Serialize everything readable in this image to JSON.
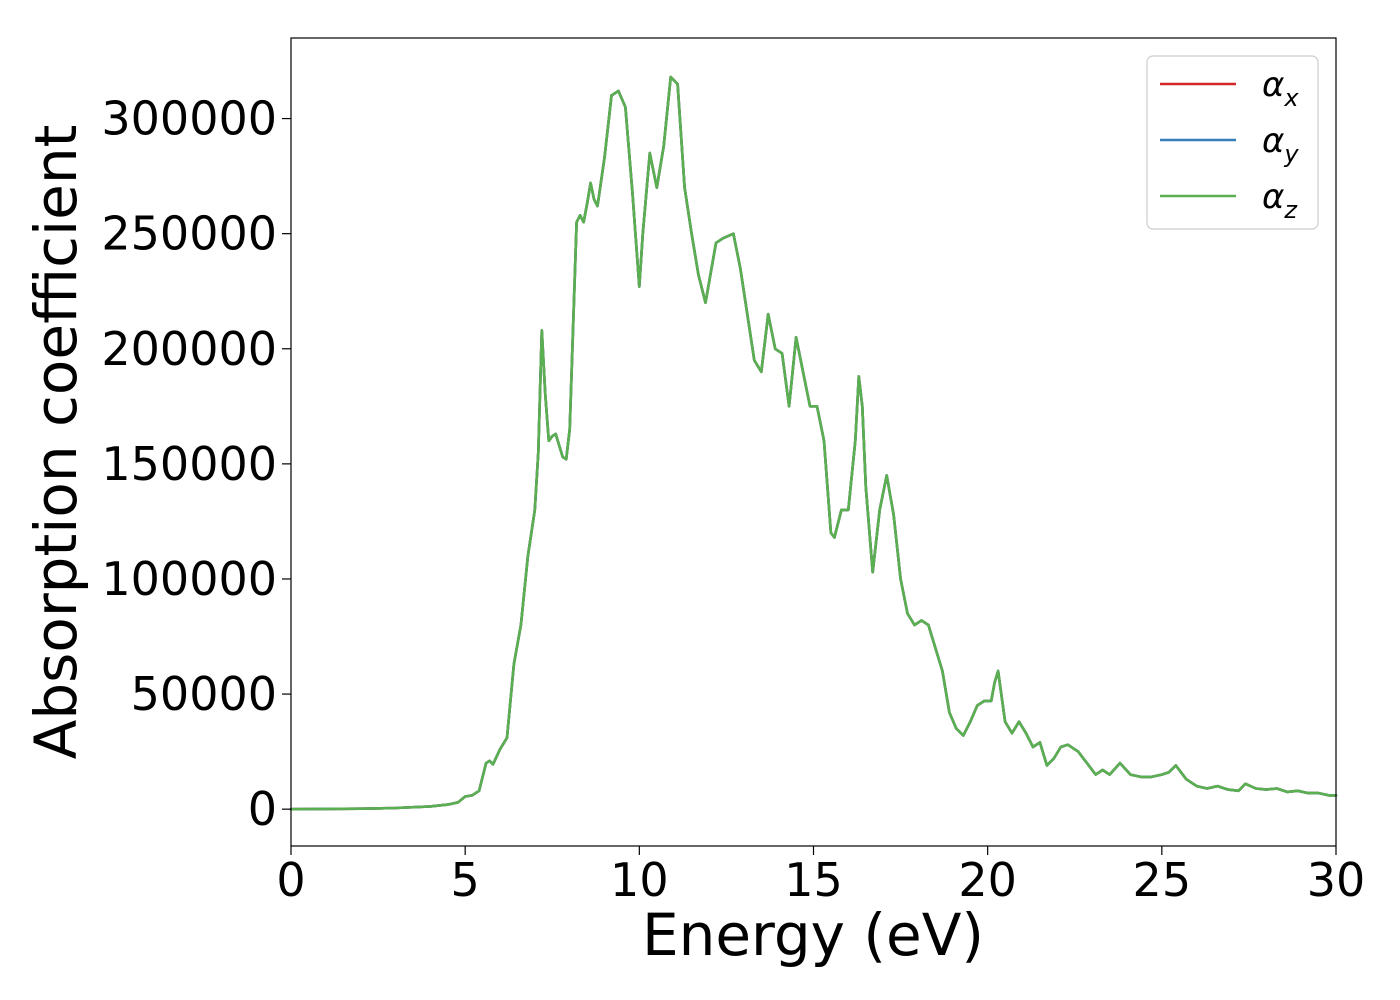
{
  "chart_data": {
    "type": "line",
    "title": "",
    "xlabel": "Energy (eV)",
    "ylabel": "Absorption coefficient",
    "xlim": [
      0,
      30
    ],
    "ylim": [
      -16000,
      335000
    ],
    "xticks": [
      0,
      5,
      10,
      15,
      20,
      25,
      30
    ],
    "xtick_labels": [
      "0",
      "5",
      "10",
      "15",
      "20",
      "25",
      "30"
    ],
    "yticks": [
      0,
      50000,
      100000,
      150000,
      200000,
      250000,
      300000
    ],
    "ytick_labels": [
      "0",
      "50000",
      "100000",
      "150000",
      "200000",
      "250000",
      "300000"
    ],
    "grid": false,
    "legend_position": "top-right",
    "x": [
      0,
      2,
      3,
      4,
      4.5,
      4.8,
      5.0,
      5.2,
      5.4,
      5.6,
      5.7,
      5.8,
      6.0,
      6.2,
      6.4,
      6.6,
      6.8,
      7.0,
      7.1,
      7.2,
      7.3,
      7.4,
      7.5,
      7.6,
      7.7,
      7.8,
      7.9,
      8.0,
      8.2,
      8.3,
      8.4,
      8.5,
      8.6,
      8.7,
      8.8,
      9.0,
      9.2,
      9.4,
      9.6,
      9.8,
      10.0,
      10.1,
      10.3,
      10.5,
      10.7,
      10.9,
      11.1,
      11.3,
      11.5,
      11.7,
      11.9,
      12.2,
      12.4,
      12.7,
      12.9,
      13.1,
      13.3,
      13.5,
      13.7,
      13.9,
      14.1,
      14.3,
      14.5,
      14.7,
      14.9,
      15.1,
      15.3,
      15.5,
      15.6,
      15.8,
      16.0,
      16.2,
      16.3,
      16.4,
      16.5,
      16.7,
      16.9,
      17.1,
      17.3,
      17.5,
      17.7,
      17.9,
      18.1,
      18.3,
      18.5,
      18.7,
      18.9,
      19.1,
      19.3,
      19.5,
      19.7,
      19.9,
      20.1,
      20.2,
      20.3,
      20.5,
      20.7,
      20.9,
      21.1,
      21.3,
      21.5,
      21.7,
      21.9,
      22.1,
      22.3,
      22.6,
      22.9,
      23.1,
      23.3,
      23.5,
      23.8,
      24.1,
      24.4,
      24.7,
      25.0,
      25.2,
      25.4,
      25.7,
      26.0,
      26.3,
      26.6,
      26.9,
      27.2,
      27.4,
      27.7,
      28.0,
      28.3,
      28.6,
      28.9,
      29.2,
      29.5,
      29.8,
      30.0
    ],
    "series": [
      {
        "name": "α_x",
        "color": "#d62728",
        "values": [
          0,
          200,
          500,
          1200,
          2000,
          3000,
          5500,
          6000,
          8000,
          20000,
          21000,
          19500,
          26000,
          31000,
          63000,
          80000,
          110000,
          130000,
          155000,
          208000,
          180000,
          160000,
          162000,
          163000,
          158000,
          153000,
          152000,
          165000,
          255000,
          258000,
          255000,
          263000,
          272000,
          265000,
          262000,
          283000,
          310000,
          312000,
          305000,
          268000,
          227000,
          250000,
          285000,
          270000,
          288000,
          318000,
          315000,
          270000,
          250000,
          232000,
          220000,
          246000,
          248000,
          250000,
          235000,
          215000,
          195000,
          190000,
          215000,
          200000,
          198000,
          175000,
          205000,
          190000,
          175000,
          175000,
          160000,
          120000,
          118000,
          130000,
          130000,
          160000,
          188000,
          175000,
          140000,
          103000,
          130000,
          145000,
          128000,
          100000,
          85000,
          80000,
          82000,
          80000,
          70000,
          60000,
          42000,
          35000,
          32000,
          38000,
          45000,
          47000,
          47000,
          55000,
          60000,
          38000,
          33000,
          38000,
          33000,
          27000,
          29000,
          19000,
          22000,
          27000,
          28000,
          25000,
          19000,
          15000,
          17000,
          15000,
          20000,
          15000,
          14000,
          14000,
          15000,
          16000,
          19000,
          13000,
          10000,
          9000,
          10000,
          8500,
          8000,
          11000,
          9000,
          8500,
          9000,
          7500,
          8000,
          7000,
          7000,
          6000,
          6000
        ]
      },
      {
        "name": "α_y",
        "color": "#377eb8",
        "values": [
          0,
          200,
          500,
          1200,
          2000,
          3000,
          5500,
          6000,
          8000,
          20000,
          21000,
          19500,
          26000,
          31000,
          63000,
          80000,
          110000,
          130000,
          155000,
          208000,
          180000,
          160000,
          162000,
          163000,
          158000,
          153000,
          152000,
          165000,
          255000,
          258000,
          255000,
          263000,
          272000,
          265000,
          262000,
          283000,
          310000,
          312000,
          305000,
          268000,
          227000,
          250000,
          285000,
          270000,
          288000,
          318000,
          315000,
          270000,
          250000,
          232000,
          220000,
          246000,
          248000,
          250000,
          235000,
          215000,
          195000,
          190000,
          215000,
          200000,
          198000,
          175000,
          205000,
          190000,
          175000,
          175000,
          160000,
          120000,
          118000,
          130000,
          130000,
          160000,
          188000,
          175000,
          140000,
          103000,
          130000,
          145000,
          128000,
          100000,
          85000,
          80000,
          82000,
          80000,
          70000,
          60000,
          42000,
          35000,
          32000,
          38000,
          45000,
          47000,
          47000,
          55000,
          60000,
          38000,
          33000,
          38000,
          33000,
          27000,
          29000,
          19000,
          22000,
          27000,
          28000,
          25000,
          19000,
          15000,
          17000,
          15000,
          20000,
          15000,
          14000,
          14000,
          15000,
          16000,
          19000,
          13000,
          10000,
          9000,
          10000,
          8500,
          8000,
          11000,
          9000,
          8500,
          9000,
          7500,
          8000,
          7000,
          7000,
          6000,
          6000
        ]
      },
      {
        "name": "α_z",
        "color": "#5aaf50",
        "values": [
          0,
          200,
          500,
          1200,
          2000,
          3000,
          5500,
          6000,
          8000,
          20000,
          21000,
          19500,
          26000,
          31000,
          63000,
          80000,
          110000,
          130000,
          155000,
          208000,
          180000,
          160000,
          162000,
          163000,
          158000,
          153000,
          152000,
          165000,
          255000,
          258000,
          255000,
          263000,
          272000,
          265000,
          262000,
          283000,
          310000,
          312000,
          305000,
          268000,
          227000,
          250000,
          285000,
          270000,
          288000,
          318000,
          315000,
          270000,
          250000,
          232000,
          220000,
          246000,
          248000,
          250000,
          235000,
          215000,
          195000,
          190000,
          215000,
          200000,
          198000,
          175000,
          205000,
          190000,
          175000,
          175000,
          160000,
          120000,
          118000,
          130000,
          130000,
          160000,
          188000,
          175000,
          140000,
          103000,
          130000,
          145000,
          128000,
          100000,
          85000,
          80000,
          82000,
          80000,
          70000,
          60000,
          42000,
          35000,
          32000,
          38000,
          45000,
          47000,
          47000,
          55000,
          60000,
          38000,
          33000,
          38000,
          33000,
          27000,
          29000,
          19000,
          22000,
          27000,
          28000,
          25000,
          19000,
          15000,
          17000,
          15000,
          20000,
          15000,
          14000,
          14000,
          15000,
          16000,
          19000,
          13000,
          10000,
          9000,
          10000,
          8500,
          8000,
          11000,
          9000,
          8500,
          9000,
          7500,
          8000,
          7000,
          7000,
          6000,
          6000
        ]
      }
    ],
    "legend": [
      {
        "symbol": "α",
        "sub": "x",
        "color": "#d62728"
      },
      {
        "symbol": "α",
        "sub": "y",
        "color": "#377eb8"
      },
      {
        "symbol": "α",
        "sub": "z",
        "color": "#5aaf50"
      }
    ]
  }
}
